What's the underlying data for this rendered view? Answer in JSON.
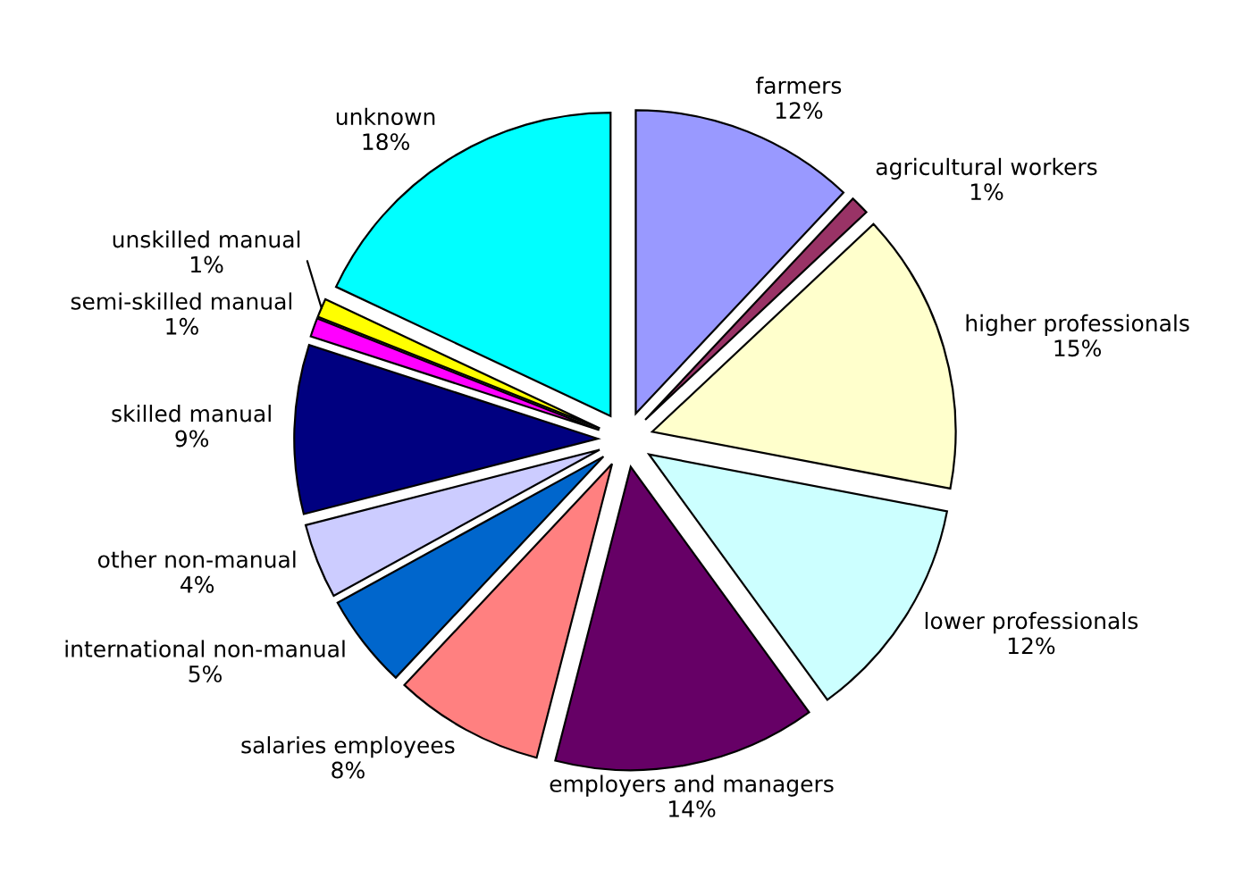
{
  "chart_data": {
    "type": "pie",
    "categories": [
      "farmers",
      "agricultural workers",
      "higher professionals",
      "lower professionals",
      "employers and managers",
      "salaries employees",
      "international non-manual",
      "other non-manual",
      "skilled manual",
      "semi-skilled manual",
      "unskilled manual",
      "unknown"
    ],
    "values": [
      12,
      1,
      15,
      12,
      14,
      8,
      5,
      4,
      9,
      1,
      1,
      18
    ],
    "value_labels": [
      "12%",
      "1%",
      "15%",
      "12%",
      "14%",
      "8%",
      "5%",
      "4%",
      "9%",
      "1%",
      "1%",
      "18%"
    ],
    "colors": [
      "#9999ff",
      "#993366",
      "#ffffcc",
      "#ccffff",
      "#660066",
      "#ff8080",
      "#0066cc",
      "#ccccff",
      "#000080",
      "#ff00ff",
      "#ffff00",
      "#00ffff"
    ]
  }
}
